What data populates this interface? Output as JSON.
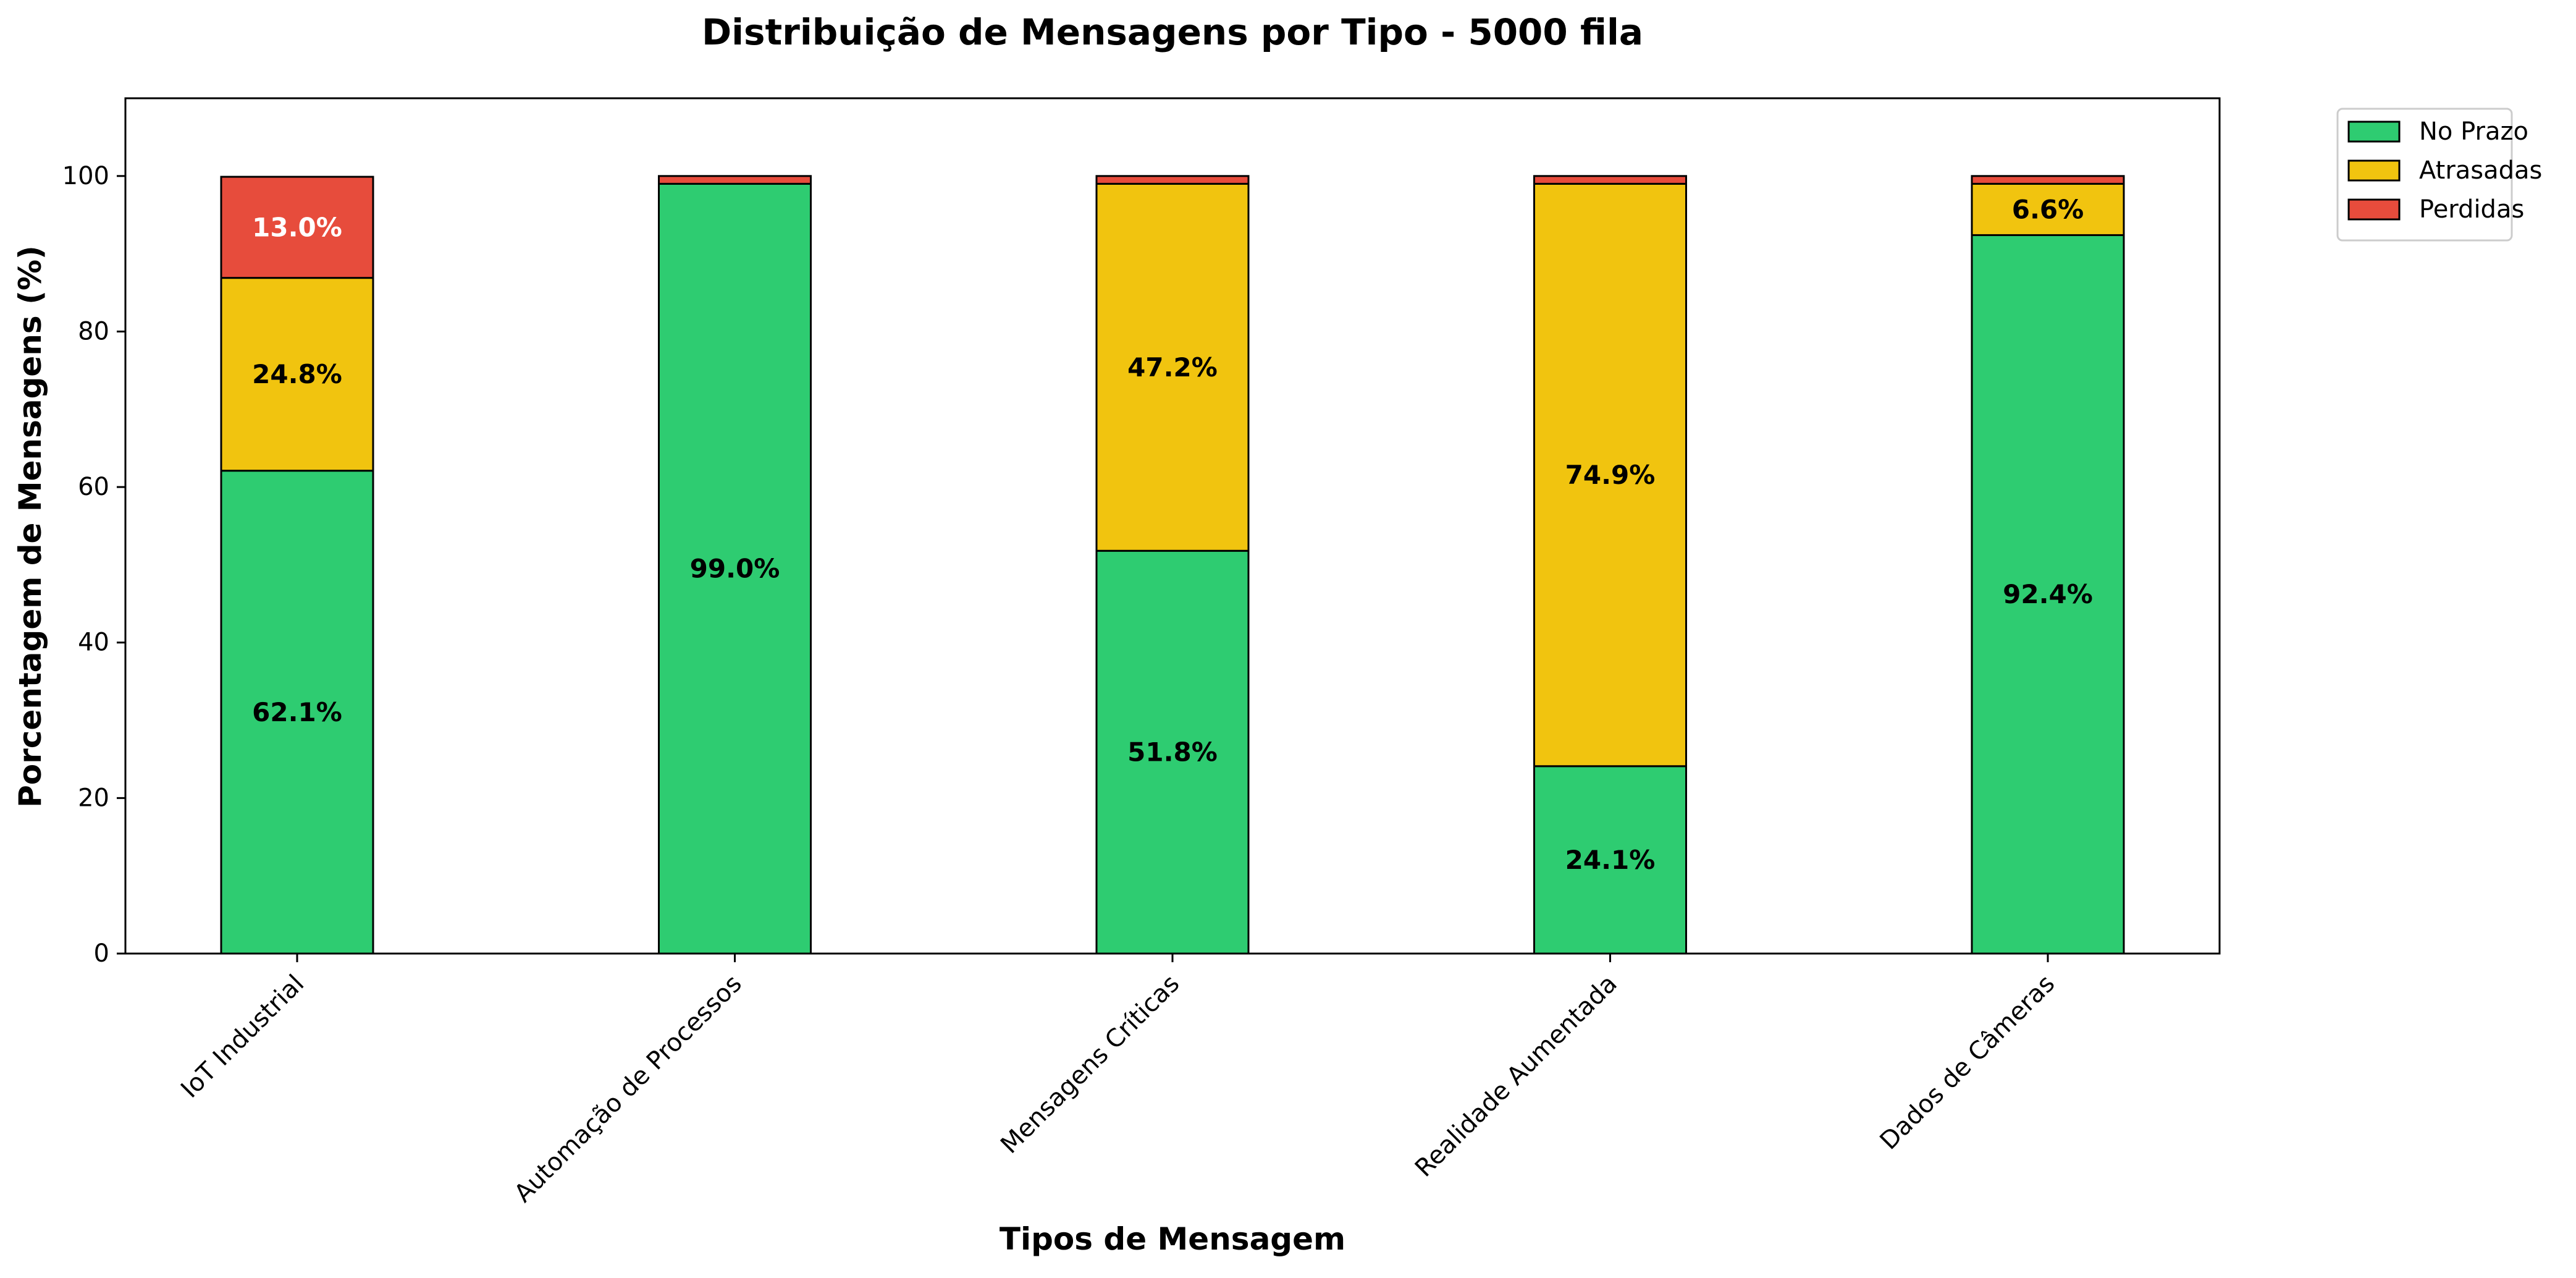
{
  "chart_data": {
    "type": "bar",
    "stacked": true,
    "title": "Distribuição de Mensagens por Tipo - 5000 fila",
    "xlabel": "Tipos de Mensagem",
    "ylabel": "Porcentagem de Mensagens (%)",
    "ylim": [
      0,
      110
    ],
    "yticks": [
      "0",
      "20",
      "40",
      "60",
      "80",
      "100"
    ],
    "grid": false,
    "legend_position": "outside top-right",
    "categories": [
      "IoT Industrial",
      "Automação de Processos",
      "Mensagens Críticas",
      "Realidade Aumentada",
      "Dados de Câmeras"
    ],
    "series": [
      {
        "name": "No Prazo",
        "color": "#2ecc71",
        "values": [
          62.1,
          99.0,
          51.8,
          24.1,
          92.4
        ],
        "labels": [
          "62.1%",
          "99.0%",
          "51.8%",
          "24.1%",
          "92.4%"
        ],
        "label_color": "#000000"
      },
      {
        "name": "Atrasadas",
        "color": "#f1c40f",
        "values": [
          24.8,
          0.0,
          47.2,
          74.9,
          6.6
        ],
        "labels": [
          "24.8%",
          "",
          "47.2%",
          "74.9%",
          "6.6%"
        ],
        "label_color": "#000000"
      },
      {
        "name": "Perdidas",
        "color": "#e74c3c",
        "values": [
          13.0,
          1.0,
          1.0,
          1.0,
          1.0
        ],
        "labels": [
          "13.0%",
          "",
          "",
          "",
          ""
        ],
        "label_color": "#ffffff"
      }
    ]
  }
}
